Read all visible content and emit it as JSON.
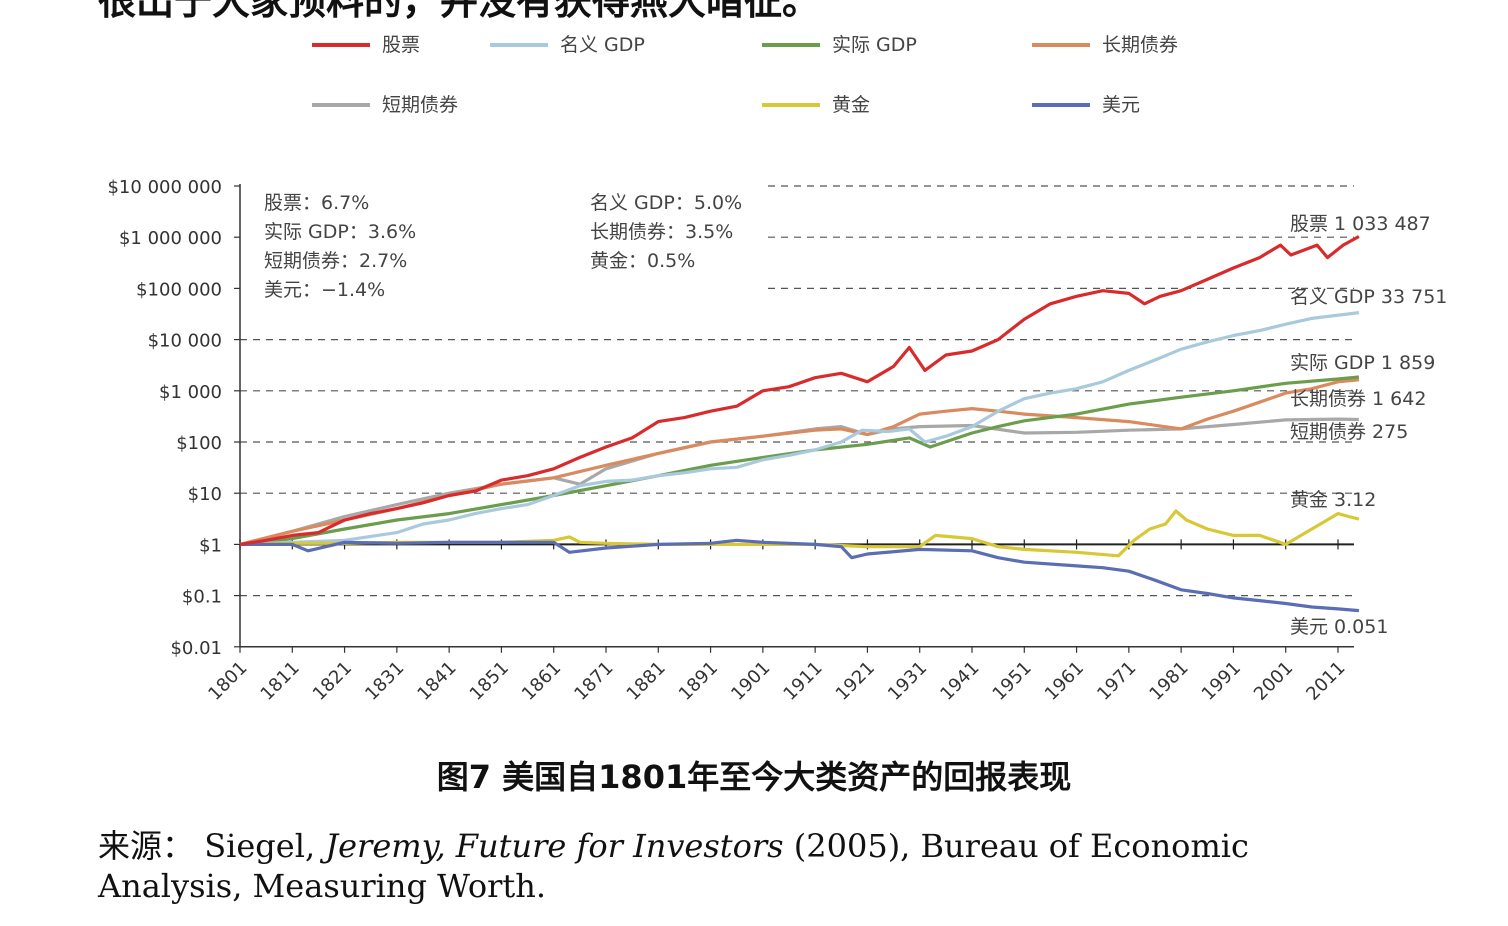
{
  "top_text": "很出于大家预料的，并没有获得燕大暗征。",
  "caption": "图7 美国自1801年至今大类资产的回报表现",
  "source": {
    "prefix": "来源：",
    "author": "Siegel,",
    "title_italic": "Jeremy, Future for Investors",
    "rest": "(2005), Bureau of Economic Analysis, Measuring Worth."
  },
  "chart_data": {
    "type": "line",
    "yscale": "log",
    "ylim": [
      0.01,
      10000000
    ],
    "xlim": [
      1801,
      2016
    ],
    "grid": "dashed-horizontal",
    "legend_position": "top",
    "y_ticks": [
      "$10 000 000",
      "$1 000 000",
      "$100 000",
      "$10 000",
      "$1 000",
      "$100",
      "$10",
      "$1",
      "$0.1",
      "$0.01"
    ],
    "x_ticks": [
      "1801",
      "1811",
      "1821",
      "1831",
      "1841",
      "1851",
      "1861",
      "1871",
      "1881",
      "1891",
      "1901",
      "1911",
      "1921",
      "1931",
      "1941",
      "1951",
      "1961",
      "1971",
      "1981",
      "1991",
      "2001",
      "2011"
    ],
    "annotations_left": [
      "股票：6.7%",
      "实际 GDP：3.6%",
      "短期债券：2.7%",
      "美元：−1.4%"
    ],
    "annotations_mid": [
      "名义 GDP：5.0%",
      "长期债券：3.5%",
      "黄金：0.5%"
    ],
    "series": [
      {
        "name": "股票",
        "color": "#d92b2b",
        "end_label": "股票 1 033 487",
        "points": [
          [
            1801,
            1
          ],
          [
            1806,
            1.2
          ],
          [
            1811,
            1.5
          ],
          [
            1816,
            1.7
          ],
          [
            1821,
            3
          ],
          [
            1826,
            4
          ],
          [
            1831,
            5
          ],
          [
            1836,
            6.5
          ],
          [
            1841,
            9
          ],
          [
            1846,
            11
          ],
          [
            1851,
            18
          ],
          [
            1856,
            22
          ],
          [
            1861,
            30
          ],
          [
            1866,
            50
          ],
          [
            1871,
            80
          ],
          [
            1876,
            120
          ],
          [
            1881,
            250
          ],
          [
            1886,
            300
          ],
          [
            1891,
            400
          ],
          [
            1896,
            500
          ],
          [
            1901,
            1000
          ],
          [
            1906,
            1200
          ],
          [
            1911,
            1800
          ],
          [
            1916,
            2200
          ],
          [
            1921,
            1500
          ],
          [
            1926,
            3000
          ],
          [
            1929,
            7000
          ],
          [
            1932,
            2500
          ],
          [
            1936,
            5000
          ],
          [
            1941,
            6000
          ],
          [
            1946,
            10000
          ],
          [
            1951,
            25000
          ],
          [
            1956,
            50000
          ],
          [
            1961,
            70000
          ],
          [
            1966,
            90000
          ],
          [
            1971,
            80000
          ],
          [
            1974,
            50000
          ],
          [
            1977,
            70000
          ],
          [
            1981,
            90000
          ],
          [
            1986,
            150000
          ],
          [
            1991,
            250000
          ],
          [
            1996,
            400000
          ],
          [
            2000,
            700000
          ],
          [
            2002,
            450000
          ],
          [
            2007,
            700000
          ],
          [
            2009,
            400000
          ],
          [
            2012,
            700000
          ],
          [
            2015,
            1033487
          ]
        ]
      },
      {
        "name": "名义 GDP",
        "color": "#a9c9dc",
        "end_label": "名义 GDP 33 751",
        "points": [
          [
            1801,
            1
          ],
          [
            1811,
            1.1
          ],
          [
            1821,
            1.2
          ],
          [
            1831,
            1.7
          ],
          [
            1836,
            2.5
          ],
          [
            1841,
            3
          ],
          [
            1846,
            4
          ],
          [
            1851,
            5
          ],
          [
            1856,
            6
          ],
          [
            1861,
            9
          ],
          [
            1866,
            14
          ],
          [
            1871,
            17
          ],
          [
            1876,
            18
          ],
          [
            1881,
            22
          ],
          [
            1886,
            25
          ],
          [
            1891,
            30
          ],
          [
            1896,
            32
          ],
          [
            1901,
            45
          ],
          [
            1906,
            55
          ],
          [
            1911,
            70
          ],
          [
            1916,
            100
          ],
          [
            1920,
            170
          ],
          [
            1925,
            160
          ],
          [
            1929,
            180
          ],
          [
            1932,
            100
          ],
          [
            1936,
            130
          ],
          [
            1941,
            200
          ],
          [
            1946,
            400
          ],
          [
            1951,
            700
          ],
          [
            1956,
            900
          ],
          [
            1961,
            1100
          ],
          [
            1966,
            1500
          ],
          [
            1971,
            2500
          ],
          [
            1976,
            4000
          ],
          [
            1981,
            6500
          ],
          [
            1986,
            9000
          ],
          [
            1991,
            12000
          ],
          [
            1996,
            15000
          ],
          [
            2001,
            20000
          ],
          [
            2006,
            26000
          ],
          [
            2011,
            30000
          ],
          [
            2015,
            33751
          ]
        ]
      },
      {
        "name": "实际 GDP",
        "color": "#6a9e4c",
        "end_label": "实际 GDP 1 859",
        "points": [
          [
            1801,
            1
          ],
          [
            1811,
            1.3
          ],
          [
            1821,
            2
          ],
          [
            1831,
            3
          ],
          [
            1841,
            4
          ],
          [
            1851,
            6
          ],
          [
            1861,
            9
          ],
          [
            1871,
            14
          ],
          [
            1881,
            22
          ],
          [
            1891,
            35
          ],
          [
            1901,
            50
          ],
          [
            1911,
            70
          ],
          [
            1921,
            90
          ],
          [
            1929,
            120
          ],
          [
            1933,
            80
          ],
          [
            1941,
            150
          ],
          [
            1946,
            200
          ],
          [
            1951,
            260
          ],
          [
            1961,
            350
          ],
          [
            1971,
            550
          ],
          [
            1981,
            750
          ],
          [
            1991,
            1000
          ],
          [
            2001,
            1400
          ],
          [
            2011,
            1700
          ],
          [
            2015,
            1859
          ]
        ]
      },
      {
        "name": "长期债券",
        "color": "#d98a5e",
        "end_label": "长期债券 1 642",
        "points": [
          [
            1801,
            1
          ],
          [
            1811,
            1.8
          ],
          [
            1821,
            3
          ],
          [
            1831,
            5
          ],
          [
            1841,
            9
          ],
          [
            1851,
            15
          ],
          [
            1861,
            20
          ],
          [
            1871,
            35
          ],
          [
            1881,
            60
          ],
          [
            1891,
            100
          ],
          [
            1901,
            130
          ],
          [
            1911,
            170
          ],
          [
            1916,
            180
          ],
          [
            1921,
            140
          ],
          [
            1926,
            200
          ],
          [
            1931,
            350
          ],
          [
            1936,
            400
          ],
          [
            1941,
            450
          ],
          [
            1946,
            400
          ],
          [
            1951,
            350
          ],
          [
            1961,
            300
          ],
          [
            1971,
            250
          ],
          [
            1981,
            180
          ],
          [
            1986,
            280
          ],
          [
            1991,
            400
          ],
          [
            1996,
            600
          ],
          [
            2001,
            900
          ],
          [
            2006,
            1100
          ],
          [
            2011,
            1500
          ],
          [
            2015,
            1642
          ]
        ]
      },
      {
        "name": "短期债券",
        "color": "#a8a8a8",
        "end_label": "短期债券 275",
        "points": [
          [
            1801,
            1
          ],
          [
            1811,
            1.8
          ],
          [
            1821,
            3.5
          ],
          [
            1831,
            6
          ],
          [
            1841,
            10
          ],
          [
            1851,
            15
          ],
          [
            1861,
            20
          ],
          [
            1866,
            15
          ],
          [
            1871,
            30
          ],
          [
            1881,
            60
          ],
          [
            1891,
            100
          ],
          [
            1901,
            130
          ],
          [
            1911,
            180
          ],
          [
            1916,
            200
          ],
          [
            1921,
            140
          ],
          [
            1926,
            180
          ],
          [
            1931,
            200
          ],
          [
            1941,
            210
          ],
          [
            1951,
            150
          ],
          [
            1961,
            155
          ],
          [
            1971,
            170
          ],
          [
            1981,
            180
          ],
          [
            1991,
            220
          ],
          [
            2001,
            270
          ],
          [
            2011,
            280
          ],
          [
            2015,
            275
          ]
        ]
      },
      {
        "name": "黄金",
        "color": "#d8c836",
        "end_label": "黄金 3.12",
        "points": [
          [
            1801,
            1
          ],
          [
            1811,
            1.05
          ],
          [
            1821,
            1.05
          ],
          [
            1831,
            1.1
          ],
          [
            1841,
            1.1
          ],
          [
            1851,
            1.1
          ],
          [
            1861,
            1.2
          ],
          [
            1864,
            1.4
          ],
          [
            1866,
            1.1
          ],
          [
            1871,
            1.05
          ],
          [
            1881,
            1
          ],
          [
            1891,
            1
          ],
          [
            1901,
            1
          ],
          [
            1911,
            1
          ],
          [
            1921,
            0.9
          ],
          [
            1931,
            0.9
          ],
          [
            1934,
            1.5
          ],
          [
            1941,
            1.3
          ],
          [
            1946,
            0.9
          ],
          [
            1951,
            0.8
          ],
          [
            1961,
            0.7
          ],
          [
            1969,
            0.6
          ],
          [
            1972,
            1.2
          ],
          [
            1975,
            2
          ],
          [
            1978,
            2.5
          ],
          [
            1980,
            4.5
          ],
          [
            1982,
            3
          ],
          [
            1986,
            2
          ],
          [
            1991,
            1.5
          ],
          [
            1996,
            1.5
          ],
          [
            2001,
            1
          ],
          [
            2006,
            2
          ],
          [
            2011,
            4
          ],
          [
            2013,
            3.5
          ],
          [
            2015,
            3.12
          ]
        ]
      },
      {
        "name": "美元",
        "color": "#5a6db5",
        "end_label": "美元 0.051",
        "points": [
          [
            1801,
            1
          ],
          [
            1811,
            1
          ],
          [
            1814,
            0.75
          ],
          [
            1821,
            1.1
          ],
          [
            1831,
            1.05
          ],
          [
            1841,
            1.1
          ],
          [
            1851,
            1.1
          ],
          [
            1861,
            1.1
          ],
          [
            1864,
            0.7
          ],
          [
            1871,
            0.85
          ],
          [
            1881,
            1
          ],
          [
            1891,
            1.05
          ],
          [
            1896,
            1.2
          ],
          [
            1901,
            1.1
          ],
          [
            1911,
            1
          ],
          [
            1916,
            0.9
          ],
          [
            1918,
            0.55
          ],
          [
            1921,
            0.65
          ],
          [
            1931,
            0.8
          ],
          [
            1941,
            0.75
          ],
          [
            1946,
            0.55
          ],
          [
            1951,
            0.45
          ],
          [
            1961,
            0.38
          ],
          [
            1966,
            0.35
          ],
          [
            1971,
            0.3
          ],
          [
            1976,
            0.2
          ],
          [
            1981,
            0.13
          ],
          [
            1986,
            0.11
          ],
          [
            1991,
            0.09
          ],
          [
            1996,
            0.08
          ],
          [
            2001,
            0.07
          ],
          [
            2006,
            0.06
          ],
          [
            2011,
            0.055
          ],
          [
            2015,
            0.051
          ]
        ]
      }
    ]
  }
}
